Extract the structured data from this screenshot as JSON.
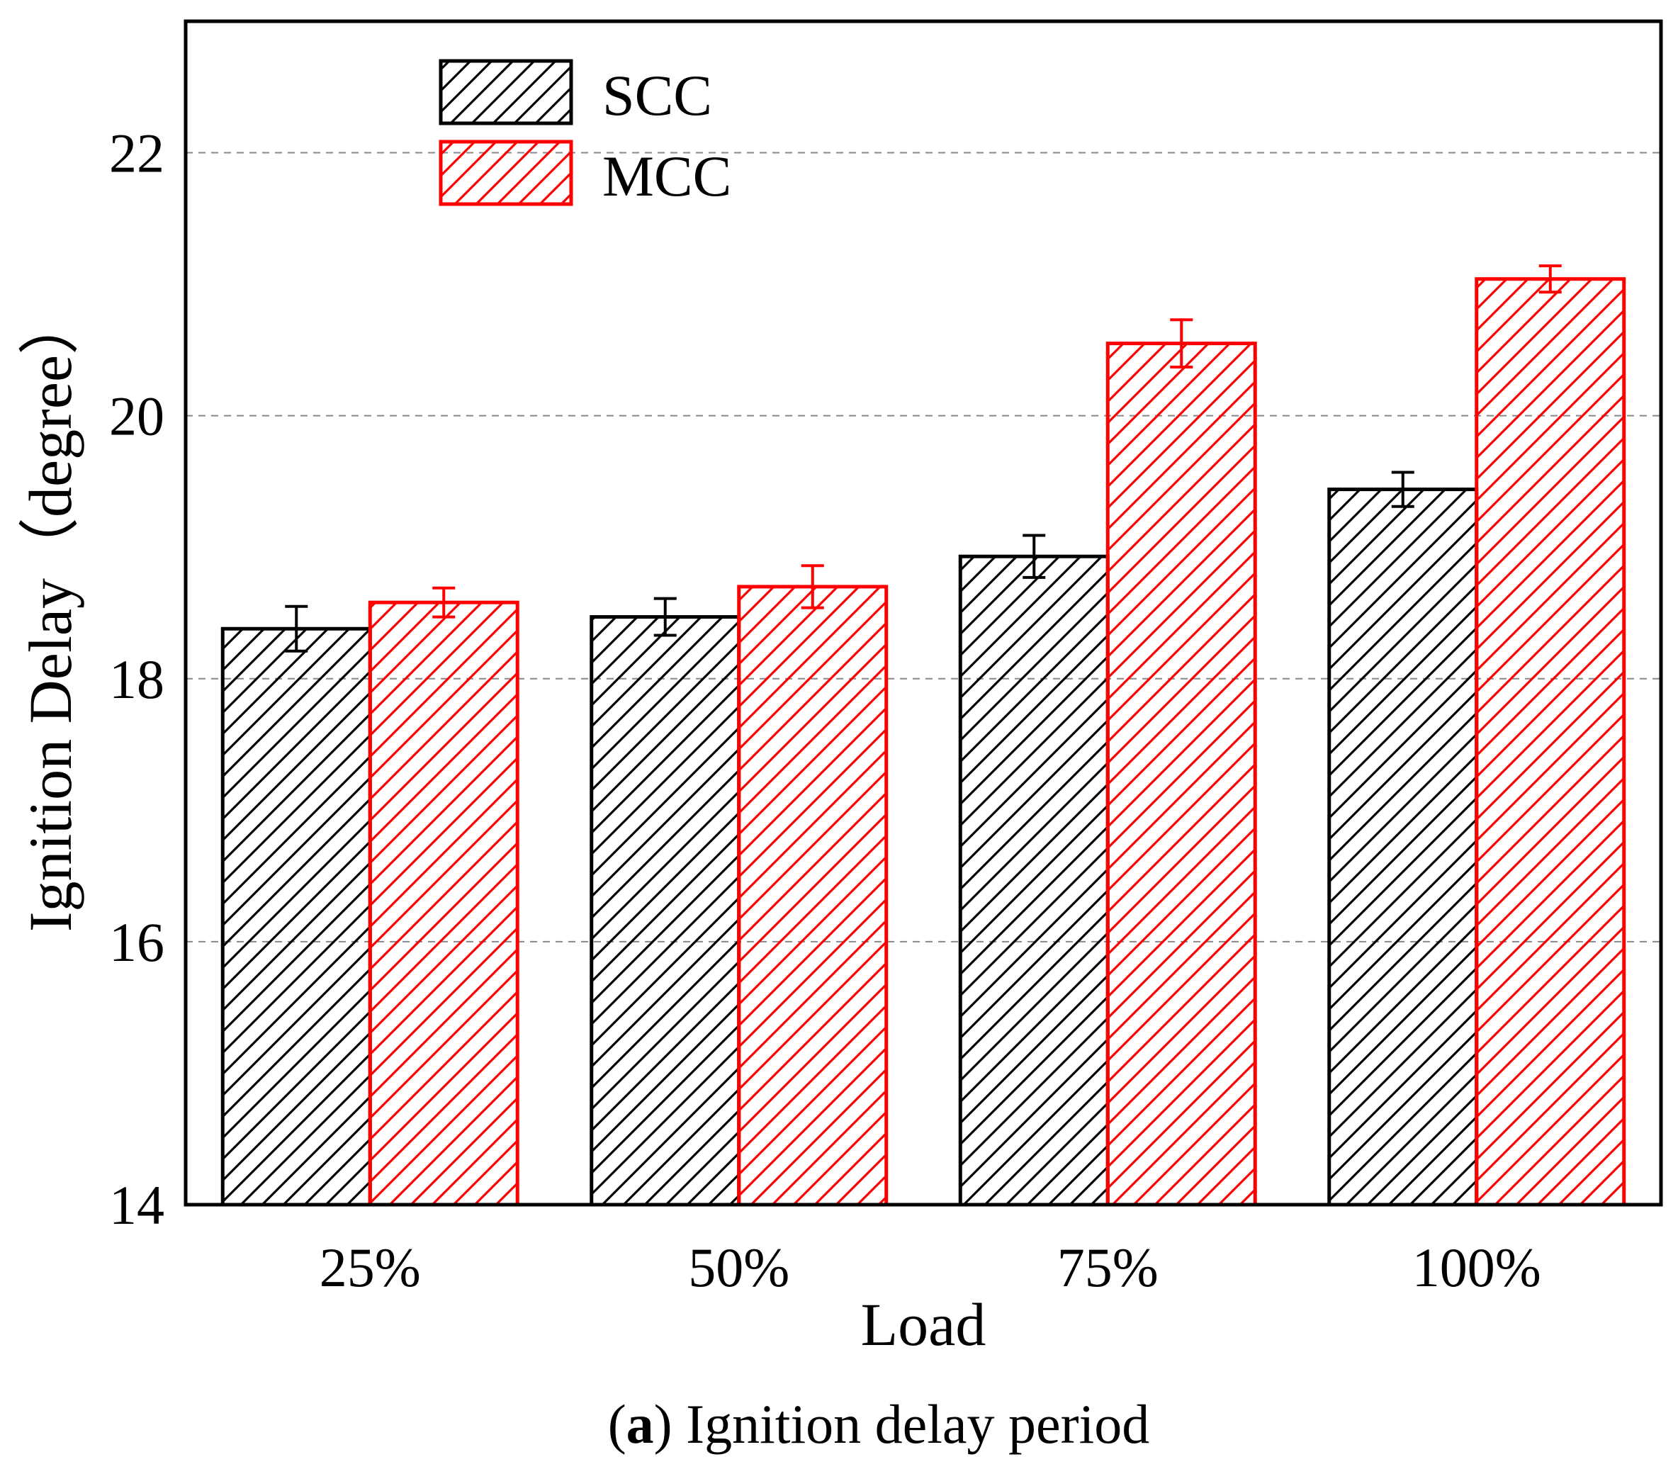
{
  "chart_data": {
    "type": "bar",
    "title": "",
    "categories": [
      "25%",
      "50%",
      "75%",
      "100%"
    ],
    "series": [
      {
        "name": "SCC",
        "color": "#000000",
        "values": [
          18.38,
          18.47,
          18.93,
          19.44
        ],
        "error": [
          0.17,
          0.14,
          0.16,
          0.13
        ]
      },
      {
        "name": "MCC",
        "color": "#ff0000",
        "values": [
          18.58,
          18.7,
          20.55,
          21.04
        ],
        "error": [
          0.11,
          0.16,
          0.18,
          0.1
        ]
      }
    ],
    "xlabel": "Load",
    "ylabel": "Ignition Delay（degree）",
    "ylim": [
      14,
      23
    ],
    "yticks": [
      14,
      16,
      18,
      20,
      22
    ],
    "grid": "horizontal dashed",
    "legend": "top-left",
    "caption": {
      "bold": "a",
      "prefix": "(",
      "suffix": ") Ignition delay period"
    }
  }
}
